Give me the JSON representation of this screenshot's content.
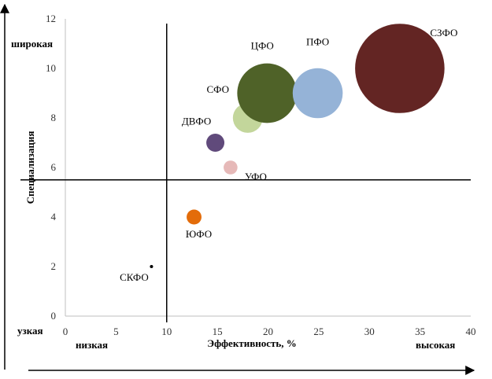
{
  "chart_data": {
    "type": "scatter",
    "title": "",
    "xlabel": "Эффективность, %",
    "ylabel": "Специализация",
    "xlim": [
      0,
      40
    ],
    "ylim": [
      0,
      12
    ],
    "xticks": [
      "0",
      "5",
      "10",
      "15",
      "20",
      "25",
      "30",
      "35",
      "40"
    ],
    "yticks": [
      "0",
      "2",
      "4",
      "6",
      "8",
      "10",
      "12"
    ],
    "grid": false,
    "legend": "none",
    "quadrant_lines": {
      "x": 10,
      "y": 5.5
    },
    "points": [
      {
        "label": "СКФО",
        "x": 8.5,
        "y": 2,
        "size": 0.15,
        "color": "#000000"
      },
      {
        "label": "ЮФО",
        "x": 12.7,
        "y": 4,
        "size": 0.7,
        "color": "#e36c0a"
      },
      {
        "label": "УФО",
        "x": 16.3,
        "y": 6,
        "size": 0.65,
        "color": "#e6b9b8"
      },
      {
        "label": "ДВФО",
        "x": 14.8,
        "y": 7,
        "size": 0.85,
        "color": "#604a7b"
      },
      {
        "label": "СФО",
        "x": 18,
        "y": 8,
        "size": 1.4,
        "color": "#c3d69b"
      },
      {
        "label": "ЦФО",
        "x": 19.9,
        "y": 9,
        "size": 2.8,
        "color": "#4f6228"
      },
      {
        "label": "ПФО",
        "x": 24.9,
        "y": 9,
        "size": 2.35,
        "color": "#95b3d7"
      },
      {
        "label": "СЗФО",
        "x": 33,
        "y": 10,
        "size": 4.2,
        "color": "#632523"
      }
    ]
  },
  "labels": {
    "y_high": "широкая",
    "y_low": "узкая",
    "x_low": "низкая",
    "x_high": "высокая"
  }
}
